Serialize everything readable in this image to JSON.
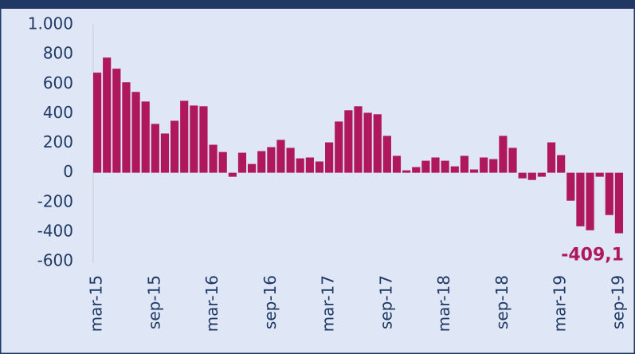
{
  "chart_data": {
    "type": "bar",
    "categories": [
      "mar-15",
      null,
      null,
      null,
      null,
      null,
      "sep-15",
      null,
      null,
      null,
      null,
      null,
      "mar-16",
      null,
      null,
      null,
      null,
      null,
      "sep-16",
      null,
      null,
      null,
      null,
      null,
      "mar-17",
      null,
      null,
      null,
      null,
      null,
      "sep-17",
      null,
      null,
      null,
      null,
      null,
      "mar-18",
      null,
      null,
      null,
      null,
      null,
      "sep-18",
      null,
      null,
      null,
      null,
      null,
      "mar-19",
      null,
      null,
      null,
      null,
      null,
      "sep-19"
    ],
    "values": [
      676,
      778,
      703,
      611,
      546,
      481,
      330,
      265,
      351,
      486,
      454,
      449,
      189,
      140,
      -27,
      135,
      59,
      146,
      173,
      222,
      168,
      97,
      103,
      76,
      205,
      346,
      422,
      449,
      405,
      395,
      249,
      114,
      16,
      38,
      81,
      103,
      81,
      43,
      114,
      22,
      103,
      92,
      249,
      168,
      -38,
      -49,
      -27,
      205,
      119,
      -189,
      -362,
      -389,
      -27,
      -286,
      -409.1
    ],
    "value_labels": [
      null,
      null,
      null,
      null,
      null,
      null,
      null,
      null,
      null,
      null,
      null,
      null,
      null,
      null,
      null,
      null,
      null,
      null,
      null,
      null,
      null,
      null,
      null,
      null,
      null,
      null,
      null,
      null,
      null,
      null,
      null,
      null,
      null,
      null,
      null,
      null,
      null,
      null,
      null,
      null,
      null,
      null,
      null,
      null,
      null,
      null,
      null,
      null,
      null,
      null,
      null,
      null,
      null,
      null,
      "-409,1"
    ],
    "color": "#b0185e",
    "ylim": [
      -600,
      1000
    ],
    "yticks": [
      -600,
      -400,
      -200,
      0,
      200,
      400,
      600,
      800,
      {
        "value": 1000,
        "label": "1.000"
      }
    ],
    "grid": false
  }
}
